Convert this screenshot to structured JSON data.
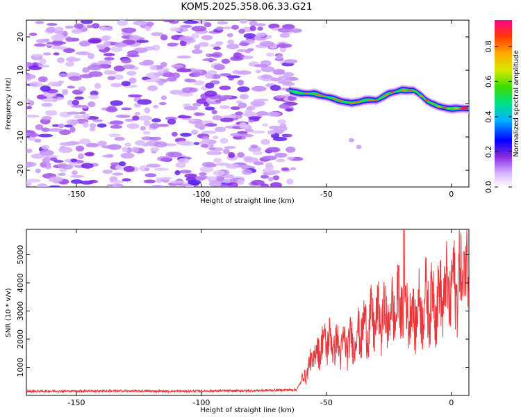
{
  "title": "KOM5.2025.358.06.33.G21",
  "chart_data": [
    {
      "type": "heatmap",
      "xlabel": "Height of straight line (km)",
      "ylabel": "Frequency (Hz)",
      "xlim": [
        -170,
        7
      ],
      "ylim": [
        -25,
        25
      ],
      "xticks": [
        -150,
        -100,
        -50,
        0
      ],
      "yticks": [
        -20,
        -10,
        0,
        10,
        20
      ],
      "colorbar": {
        "label": "Normalized spectral amplitude",
        "range": [
          0,
          0.95
        ],
        "ticks": [
          0.0,
          0.2,
          0.4,
          0.6,
          0.8
        ]
      },
      "signal_track": {
        "x": [
          -65,
          -60,
          -55,
          -50,
          -45,
          -40,
          -35,
          -30,
          -25,
          -20,
          -15,
          -10,
          -5,
          0,
          5
        ],
        "freq_hz": [
          4,
          3,
          3,
          2,
          1,
          0,
          1,
          1,
          3,
          4,
          4,
          1,
          -1,
          -1.5,
          -1.5
        ],
        "peak_amplitude": 0.9
      },
      "noise_region": {
        "x_start": -170,
        "x_end": -65,
        "typical_amplitude": 0.15
      }
    },
    {
      "type": "line",
      "xlabel": "Height of straight line (km)",
      "ylabel": "SNR (10 * v/v)",
      "xlim": [
        -170,
        7
      ],
      "ylim": [
        0,
        5900
      ],
      "xticks": [
        -150,
        -100,
        -50,
        0
      ],
      "yticks": [
        1000,
        2000,
        3000,
        4000,
        5000
      ],
      "series": [
        {
          "name": "SNR",
          "color": "#e8383d",
          "envelope": {
            "x": [
              -170,
              -140,
              -110,
              -80,
              -62,
              -58,
              -55,
              -50,
              -45,
              -40,
              -35,
              -30,
              -25,
              -20,
              -15,
              -10,
              -5,
              0,
              5,
              7
            ],
            "y": [
              150,
              160,
              150,
              170,
              200,
              800,
              1400,
              2000,
              1700,
              1900,
              2400,
              2700,
              2800,
              3300,
              2800,
              3300,
              3400,
              3800,
              4300,
              4300
            ]
          },
          "peaks": {
            "x": [
              -19,
              -21,
              5
            ],
            "y": [
              5900,
              4600,
              5100
            ]
          }
        }
      ]
    }
  ]
}
